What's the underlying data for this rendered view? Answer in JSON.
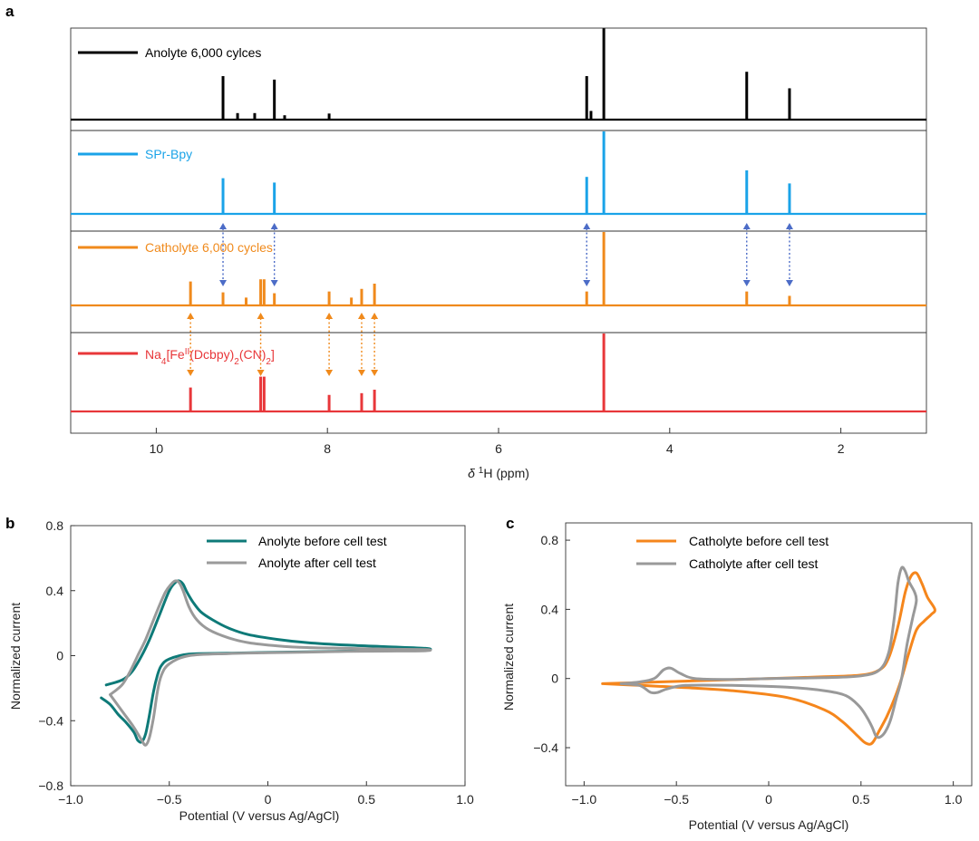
{
  "panels": {
    "a": "a",
    "b": "b",
    "c": "c"
  },
  "chart_data": [
    {
      "type": "line",
      "id": "nmr",
      "panel": "a",
      "xlabel": "δ ¹H (ppm)",
      "xlim": [
        11,
        1
      ],
      "x_reversed": true,
      "xticks": [
        10,
        8,
        6,
        4,
        2
      ],
      "xtick_labels": [
        "10",
        "8",
        "6",
        "4",
        "2"
      ],
      "series": [
        {
          "name": "Anolyte 6,000 cylces",
          "color": "#000000",
          "peaks": [
            [
              9.22,
              1.0
            ],
            [
              9.05,
              0.15
            ],
            [
              8.85,
              0.15
            ],
            [
              8.62,
              0.92
            ],
            [
              8.5,
              0.1
            ],
            [
              7.98,
              0.14
            ],
            [
              4.97,
              1.0
            ],
            [
              4.92,
              0.2
            ],
            [
              4.77,
              2.1
            ],
            [
              3.1,
              1.1
            ],
            [
              2.6,
              0.72
            ]
          ]
        },
        {
          "name": "SPr-Bpy",
          "color": "#1aa3e8",
          "peaks": [
            [
              9.22,
              0.82
            ],
            [
              8.62,
              0.72
            ],
            [
              4.97,
              0.85
            ],
            [
              4.77,
              2.2
            ],
            [
              3.1,
              1.0
            ],
            [
              2.6,
              0.7
            ]
          ]
        },
        {
          "name": "Catholyte 6,000 cycles",
          "color": "#f08a1c",
          "peaks": [
            [
              9.6,
              0.55
            ],
            [
              9.22,
              0.3
            ],
            [
              8.95,
              0.18
            ],
            [
              8.78,
              0.6
            ],
            [
              8.74,
              0.6
            ],
            [
              8.62,
              0.28
            ],
            [
              7.98,
              0.32
            ],
            [
              7.72,
              0.18
            ],
            [
              7.6,
              0.38
            ],
            [
              7.45,
              0.5
            ],
            [
              4.97,
              0.32
            ],
            [
              4.77,
              2.0
            ],
            [
              3.1,
              0.32
            ],
            [
              2.6,
              0.22
            ]
          ]
        },
        {
          "name": "Na4[FeII(Dcbpy)2(CN)2]",
          "color": "#e8373a",
          "peaks": [
            [
              9.6,
              0.55
            ],
            [
              8.78,
              0.8
            ],
            [
              8.74,
              0.8
            ],
            [
              7.98,
              0.38
            ],
            [
              7.6,
              0.42
            ],
            [
              7.45,
              0.5
            ],
            [
              4.77,
              2.0
            ]
          ]
        }
      ],
      "blue_arrows_ppm": [
        9.22,
        8.62,
        4.97,
        3.1,
        2.6
      ],
      "orange_arrows_ppm": [
        9.6,
        8.78,
        7.98,
        7.6,
        7.45
      ]
    },
    {
      "type": "line",
      "id": "cv-anolyte",
      "panel": "b",
      "xlabel": "Potential (V versus Ag/AgCl)",
      "ylabel": "Normalized current",
      "xlim": [
        -1.0,
        1.0
      ],
      "ylim": [
        -0.8,
        0.8
      ],
      "xticks": [
        -1.0,
        -0.5,
        0,
        0.5,
        1.0
      ],
      "xtick_labels": [
        "−1.0",
        "−0.5",
        "0",
        "0.5",
        "1.0"
      ],
      "yticks": [
        -0.8,
        -0.4,
        0,
        0.4,
        0.8
      ],
      "ytick_labels": [
        "−0.8",
        "−0.4",
        "0",
        "0.4",
        "0.8"
      ],
      "legend_position": "top-right",
      "series": [
        {
          "name": "Anolyte before cell test",
          "color": "#0e7a78",
          "x": [
            -0.82,
            -0.74,
            -0.69,
            -0.64,
            -0.6,
            -0.55,
            -0.5,
            -0.47,
            -0.45,
            -0.43,
            -0.41,
            -0.38,
            -0.34,
            -0.28,
            -0.2,
            -0.1,
            0.05,
            0.2,
            0.4,
            0.6,
            0.8,
            0.8,
            0.6,
            0.4,
            0.2,
            0.0,
            -0.2,
            -0.4,
            -0.5,
            -0.54,
            -0.56,
            -0.58,
            -0.6,
            -0.62,
            -0.64,
            -0.66,
            -0.68,
            -0.72,
            -0.76,
            -0.8,
            -0.845
          ],
          "y": [
            -0.18,
            -0.15,
            -0.1,
            0.0,
            0.1,
            0.25,
            0.4,
            0.45,
            0.46,
            0.44,
            0.39,
            0.33,
            0.27,
            0.22,
            0.17,
            0.13,
            0.1,
            0.08,
            0.065,
            0.055,
            0.045,
            0.035,
            0.032,
            0.028,
            0.024,
            0.02,
            0.015,
            0.01,
            -0.02,
            -0.06,
            -0.12,
            -0.22,
            -0.36,
            -0.48,
            -0.53,
            -0.52,
            -0.47,
            -0.41,
            -0.36,
            -0.3,
            -0.26
          ]
        },
        {
          "name": "Anolyte after cell test",
          "color": "#9a9a9a",
          "x": [
            -0.8,
            -0.74,
            -0.7,
            -0.66,
            -0.62,
            -0.56,
            -0.52,
            -0.49,
            -0.47,
            -0.45,
            -0.43,
            -0.4,
            -0.36,
            -0.3,
            -0.2,
            -0.1,
            0.05,
            0.2,
            0.4,
            0.6,
            0.8,
            0.8,
            0.6,
            0.4,
            0.2,
            0.0,
            -0.2,
            -0.4,
            -0.5,
            -0.54,
            -0.56,
            -0.58,
            -0.6,
            -0.62,
            -0.64,
            -0.68,
            -0.74,
            -0.8
          ],
          "y": [
            -0.24,
            -0.18,
            -0.1,
            0.0,
            0.1,
            0.28,
            0.39,
            0.44,
            0.46,
            0.45,
            0.4,
            0.3,
            0.22,
            0.16,
            0.11,
            0.08,
            0.06,
            0.05,
            0.045,
            0.04,
            0.038,
            0.03,
            0.028,
            0.026,
            0.022,
            0.018,
            0.013,
            0.0,
            -0.05,
            -0.12,
            -0.22,
            -0.38,
            -0.5,
            -0.55,
            -0.52,
            -0.44,
            -0.34,
            -0.24
          ]
        }
      ]
    },
    {
      "type": "line",
      "id": "cv-catholyte",
      "panel": "c",
      "xlabel": "Potential (V versus Ag/AgCl)",
      "ylabel": "Normalized current",
      "xlim": [
        -1.1,
        1.1
      ],
      "ylim": [
        -0.62,
        0.9
      ],
      "xticks": [
        -1.0,
        -0.5,
        0,
        0.5,
        1.0
      ],
      "xtick_labels": [
        "−1.0",
        "−0.5",
        "0",
        "0.5",
        "1.0"
      ],
      "yticks": [
        -0.4,
        0,
        0.4,
        0.8
      ],
      "ytick_labels": [
        "−0.4",
        "0",
        "0.4",
        "0.8"
      ],
      "legend_position": "top-center",
      "series": [
        {
          "name": "Catholyte before cell test",
          "color": "#f5861c",
          "x": [
            -0.9,
            -0.6,
            -0.3,
            0.0,
            0.3,
            0.5,
            0.6,
            0.65,
            0.7,
            0.74,
            0.77,
            0.8,
            0.83,
            0.86,
            0.9,
            0.88,
            0.84,
            0.8,
            0.76,
            0.72,
            0.68,
            0.64,
            0.6,
            0.57,
            0.55,
            0.52,
            0.48,
            0.4,
            0.3,
            0.1,
            -0.2,
            -0.5,
            -0.7,
            -0.9
          ],
          "y": [
            -0.03,
            -0.02,
            -0.01,
            0.0,
            0.01,
            0.02,
            0.05,
            0.12,
            0.3,
            0.5,
            0.59,
            0.61,
            0.55,
            0.47,
            0.4,
            0.37,
            0.33,
            0.28,
            0.15,
            0.0,
            -0.12,
            -0.22,
            -0.3,
            -0.36,
            -0.38,
            -0.37,
            -0.33,
            -0.25,
            -0.18,
            -0.11,
            -0.07,
            -0.05,
            -0.04,
            -0.03
          ]
        },
        {
          "name": "Catholyte after cell test",
          "color": "#999999",
          "x": [
            -0.8,
            -0.7,
            -0.62,
            -0.57,
            -0.53,
            -0.48,
            -0.4,
            -0.2,
            0.0,
            0.3,
            0.5,
            0.6,
            0.65,
            0.68,
            0.7,
            0.72,
            0.74,
            0.76,
            0.79,
            0.8,
            0.78,
            0.75,
            0.72,
            0.69,
            0.66,
            0.63,
            0.6,
            0.58,
            0.56,
            0.53,
            0.49,
            0.42,
            0.3,
            0.1,
            -0.2,
            -0.45,
            -0.55,
            -0.6,
            -0.64,
            -0.7,
            -0.8
          ],
          "y": [
            -0.03,
            -0.02,
            0.0,
            0.05,
            0.06,
            0.03,
            0.0,
            -0.005,
            0.0,
            0.005,
            0.015,
            0.05,
            0.15,
            0.35,
            0.55,
            0.64,
            0.62,
            0.56,
            0.5,
            0.45,
            0.35,
            0.2,
            0.0,
            -0.12,
            -0.24,
            -0.31,
            -0.34,
            -0.33,
            -0.28,
            -0.22,
            -0.16,
            -0.1,
            -0.07,
            -0.05,
            -0.04,
            -0.04,
            -0.06,
            -0.08,
            -0.08,
            -0.04,
            -0.03
          ]
        }
      ]
    }
  ]
}
